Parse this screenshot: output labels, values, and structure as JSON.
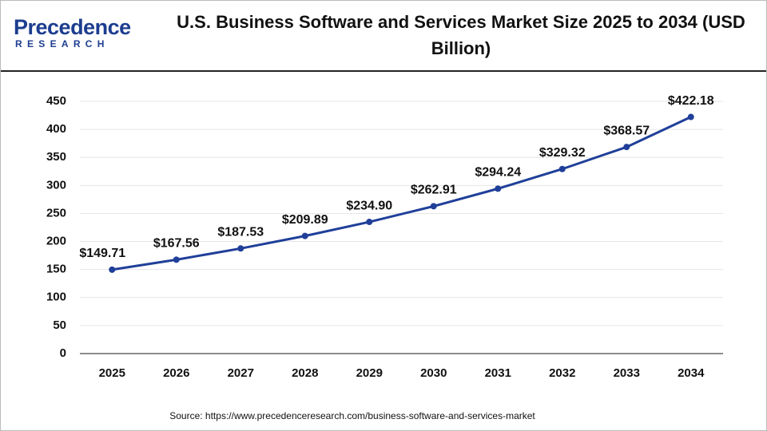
{
  "logo": {
    "name": "Precedence",
    "tagline": "RESEARCH"
  },
  "chart_data": {
    "type": "line",
    "title": "U.S. Business Software and Services Market Size 2025 to 2034 (USD Billion)",
    "categories": [
      "2025",
      "2026",
      "2027",
      "2028",
      "2029",
      "2030",
      "2031",
      "2032",
      "2033",
      "2034"
    ],
    "series": [
      {
        "name": "Market Size",
        "color": "#1f3f99",
        "values": [
          149.71,
          167.56,
          187.53,
          209.89,
          234.9,
          262.91,
          294.24,
          329.32,
          368.57,
          422.18
        ],
        "value_labels": [
          "$149.71",
          "$167.56",
          "$187.53",
          "$209.89",
          "$234.90",
          "$262.91",
          "$294.24",
          "$329.32",
          "$368.57",
          "$422.18"
        ]
      }
    ],
    "ylim": [
      0,
      450
    ],
    "yticks": [
      0,
      50,
      100,
      150,
      200,
      250,
      300,
      350,
      400,
      450
    ],
    "grid": true,
    "source": "Source: https://www.precedenceresearch.com/business-software-and-services-market"
  }
}
